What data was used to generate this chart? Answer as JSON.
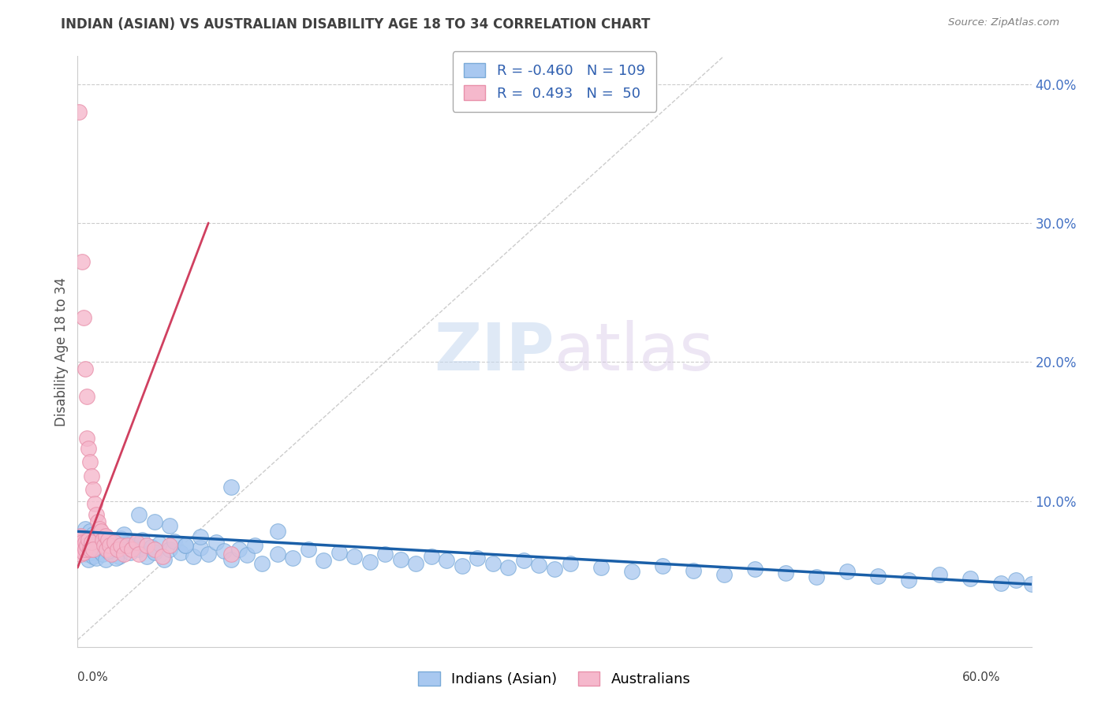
{
  "title": "INDIAN (ASIAN) VS AUSTRALIAN DISABILITY AGE 18 TO 34 CORRELATION CHART",
  "source": "Source: ZipAtlas.com",
  "ylabel": "Disability Age 18 to 34",
  "xlim": [
    0.0,
    0.62
  ],
  "ylim": [
    -0.005,
    0.42
  ],
  "watermark_zip": "ZIP",
  "watermark_atlas": "atlas",
  "legend_blue_r": "-0.460",
  "legend_blue_n": "109",
  "legend_pink_r": "0.493",
  "legend_pink_n": "50",
  "blue_color": "#a8c8f0",
  "blue_edge_color": "#7aaad8",
  "pink_color": "#f5b8cc",
  "pink_edge_color": "#e890aa",
  "blue_line_color": "#1a5fa8",
  "pink_line_color": "#d04060",
  "grid_color": "#cccccc",
  "title_color": "#404040",
  "source_color": "#808080",
  "ylabel_color": "#505050",
  "ytick_color": "#4472c4",
  "xtick_color": "#404040",
  "blue_scatter_x": [
    0.002,
    0.003,
    0.004,
    0.005,
    0.005,
    0.006,
    0.006,
    0.007,
    0.007,
    0.008,
    0.008,
    0.009,
    0.009,
    0.01,
    0.01,
    0.01,
    0.011,
    0.011,
    0.012,
    0.012,
    0.013,
    0.014,
    0.015,
    0.015,
    0.016,
    0.017,
    0.018,
    0.019,
    0.02,
    0.021,
    0.022,
    0.024,
    0.025,
    0.027,
    0.028,
    0.03,
    0.032,
    0.034,
    0.036,
    0.038,
    0.04,
    0.042,
    0.045,
    0.048,
    0.05,
    0.053,
    0.056,
    0.06,
    0.063,
    0.067,
    0.07,
    0.075,
    0.08,
    0.085,
    0.09,
    0.095,
    0.1,
    0.105,
    0.11,
    0.115,
    0.12,
    0.13,
    0.14,
    0.15,
    0.16,
    0.17,
    0.18,
    0.19,
    0.2,
    0.21,
    0.22,
    0.23,
    0.24,
    0.25,
    0.26,
    0.27,
    0.28,
    0.29,
    0.3,
    0.31,
    0.32,
    0.34,
    0.36,
    0.38,
    0.4,
    0.42,
    0.44,
    0.46,
    0.48,
    0.5,
    0.52,
    0.54,
    0.56,
    0.58,
    0.6,
    0.61,
    0.62,
    0.1,
    0.13,
    0.06,
    0.07,
    0.08,
    0.05,
    0.04,
    0.03,
    0.025,
    0.02,
    0.015,
    0.012
  ],
  "blue_scatter_y": [
    0.075,
    0.068,
    0.072,
    0.065,
    0.08,
    0.07,
    0.062,
    0.073,
    0.058,
    0.067,
    0.078,
    0.063,
    0.071,
    0.069,
    0.076,
    0.06,
    0.065,
    0.073,
    0.068,
    0.059,
    0.072,
    0.064,
    0.07,
    0.066,
    0.062,
    0.075,
    0.058,
    0.068,
    0.072,
    0.063,
    0.067,
    0.07,
    0.065,
    0.06,
    0.073,
    0.066,
    0.069,
    0.063,
    0.071,
    0.068,
    0.065,
    0.072,
    0.06,
    0.067,
    0.063,
    0.069,
    0.058,
    0.065,
    0.071,
    0.063,
    0.068,
    0.06,
    0.066,
    0.062,
    0.07,
    0.064,
    0.058,
    0.065,
    0.061,
    0.068,
    0.055,
    0.062,
    0.059,
    0.065,
    0.057,
    0.063,
    0.06,
    0.056,
    0.062,
    0.058,
    0.055,
    0.06,
    0.057,
    0.053,
    0.059,
    0.055,
    0.052,
    0.057,
    0.054,
    0.051,
    0.055,
    0.052,
    0.049,
    0.053,
    0.05,
    0.047,
    0.051,
    0.048,
    0.045,
    0.049,
    0.046,
    0.043,
    0.047,
    0.044,
    0.041,
    0.043,
    0.04,
    0.11,
    0.078,
    0.082,
    0.068,
    0.074,
    0.085,
    0.09,
    0.076,
    0.059,
    0.064,
    0.071,
    0.069
  ],
  "pink_scatter_x": [
    0.001,
    0.001,
    0.002,
    0.002,
    0.002,
    0.003,
    0.003,
    0.003,
    0.004,
    0.004,
    0.004,
    0.005,
    0.005,
    0.005,
    0.006,
    0.006,
    0.006,
    0.007,
    0.007,
    0.008,
    0.008,
    0.009,
    0.009,
    0.01,
    0.01,
    0.011,
    0.012,
    0.013,
    0.014,
    0.015,
    0.016,
    0.017,
    0.018,
    0.019,
    0.02,
    0.021,
    0.022,
    0.024,
    0.026,
    0.028,
    0.03,
    0.032,
    0.035,
    0.038,
    0.04,
    0.045,
    0.05,
    0.055,
    0.06,
    0.1
  ],
  "pink_scatter_y": [
    0.38,
    0.072,
    0.068,
    0.062,
    0.075,
    0.272,
    0.065,
    0.07,
    0.232,
    0.063,
    0.068,
    0.195,
    0.07,
    0.065,
    0.175,
    0.145,
    0.068,
    0.138,
    0.072,
    0.128,
    0.065,
    0.118,
    0.07,
    0.108,
    0.065,
    0.098,
    0.09,
    0.085,
    0.08,
    0.078,
    0.072,
    0.068,
    0.075,
    0.065,
    0.072,
    0.068,
    0.062,
    0.07,
    0.065,
    0.068,
    0.062,
    0.068,
    0.065,
    0.07,
    0.062,
    0.068,
    0.065,
    0.06,
    0.068,
    0.062
  ],
  "blue_trend_x": [
    0.0,
    0.62
  ],
  "blue_trend_y": [
    0.078,
    0.04
  ],
  "pink_trend_x": [
    0.0,
    0.085
  ],
  "pink_trend_y": [
    0.052,
    0.3
  ],
  "diag_line_x": [
    0.0,
    0.42
  ],
  "diag_line_y": [
    0.0,
    0.42
  ],
  "ytick_positions": [
    0.1,
    0.2,
    0.3,
    0.4
  ],
  "ytick_labels": [
    "10.0%",
    "20.0%",
    "30.0%",
    "40.0%"
  ]
}
